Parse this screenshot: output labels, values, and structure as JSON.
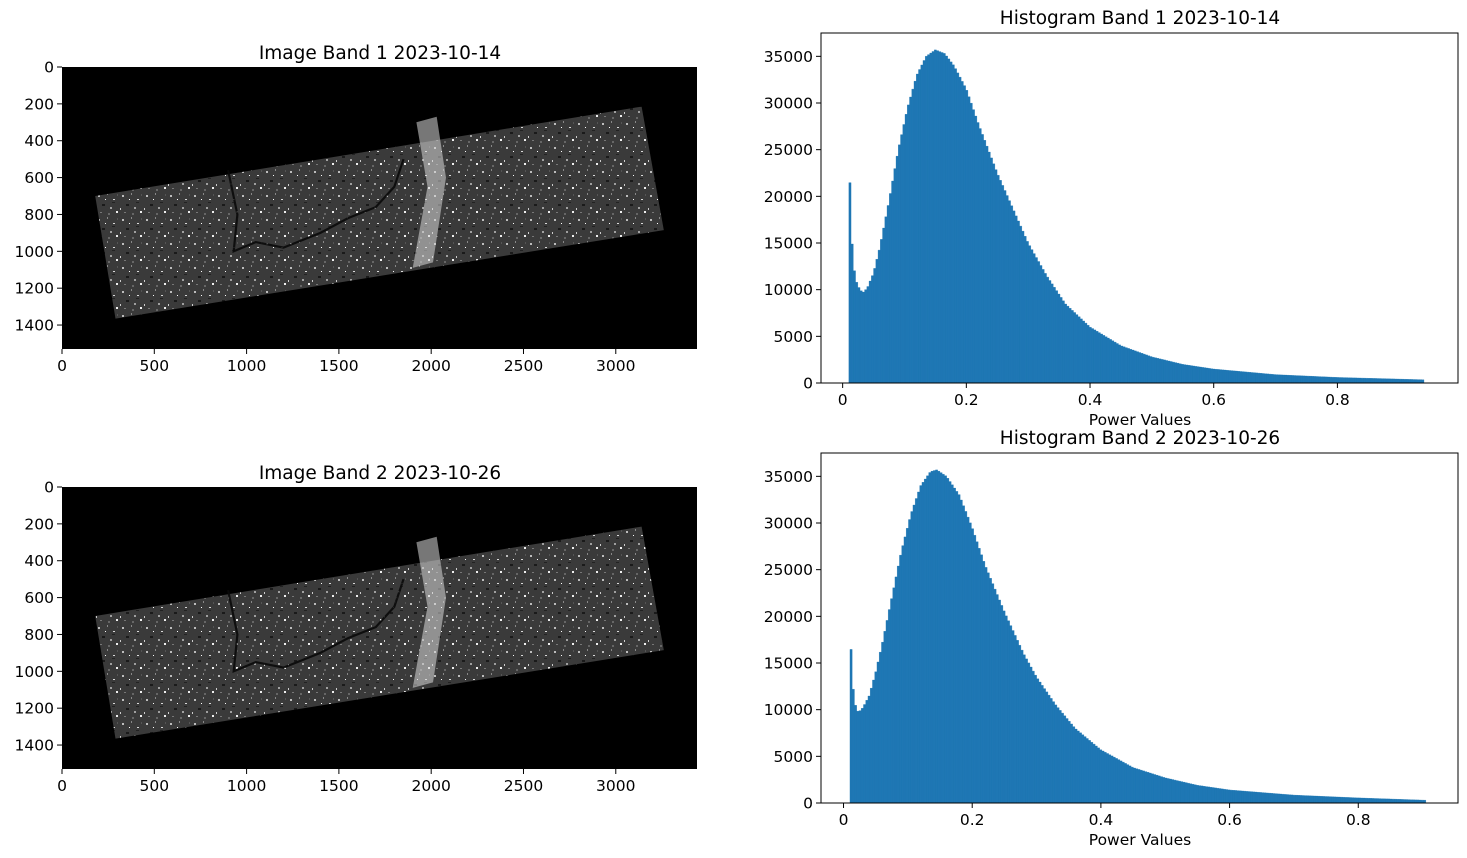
{
  "figure": {
    "bar_color": "#1f77b4",
    "image_cmap": "gray",
    "image_background": "#000000"
  },
  "chart_data": [
    {
      "type": "heatmap",
      "id": "image1",
      "title": "Image Band 1 2023-10-14",
      "xlabel": "",
      "ylabel": "",
      "xlim": [
        0,
        3440
      ],
      "ylim": [
        1530,
        0
      ],
      "xticks": [
        0,
        500,
        1000,
        1500,
        2000,
        2500,
        3000
      ],
      "yticks": [
        0,
        200,
        400,
        600,
        800,
        1000,
        1200,
        1400
      ],
      "swath_corners": [
        [
          180,
          700
        ],
        [
          3140,
          215
        ],
        [
          3260,
          885
        ],
        [
          290,
          1365
        ]
      ]
    },
    {
      "type": "bar",
      "id": "hist1",
      "title": "Histogram Band 1 2023-10-14",
      "xlabel": "Power Values",
      "ylabel": "",
      "xlim": [
        -0.035,
        0.995
      ],
      "ylim": [
        0,
        37500
      ],
      "xticks": [
        0.0,
        0.2,
        0.4,
        0.6,
        0.8
      ],
      "yticks": [
        0,
        5000,
        10000,
        15000,
        20000,
        25000,
        30000,
        35000
      ],
      "x_range": [
        0.01,
        0.94
      ],
      "bins": 256,
      "profile": [
        [
          0.01,
          26500
        ],
        [
          0.0135,
          16800
        ],
        [
          0.018,
          12400
        ],
        [
          0.023,
          10700
        ],
        [
          0.028,
          10000
        ],
        [
          0.033,
          9700
        ],
        [
          0.04,
          10200
        ],
        [
          0.05,
          11800
        ],
        [
          0.06,
          14500
        ],
        [
          0.075,
          19500
        ],
        [
          0.09,
          25000
        ],
        [
          0.105,
          29500
        ],
        [
          0.12,
          33000
        ],
        [
          0.135,
          35000
        ],
        [
          0.15,
          35700
        ],
        [
          0.165,
          35300
        ],
        [
          0.18,
          34000
        ],
        [
          0.2,
          31500
        ],
        [
          0.22,
          27700
        ],
        [
          0.25,
          22500
        ],
        [
          0.28,
          18000
        ],
        [
          0.3,
          15000
        ],
        [
          0.33,
          11500
        ],
        [
          0.36,
          8500
        ],
        [
          0.4,
          6000
        ],
        [
          0.45,
          4000
        ],
        [
          0.5,
          2800
        ],
        [
          0.55,
          2000
        ],
        [
          0.6,
          1500
        ],
        [
          0.7,
          900
        ],
        [
          0.8,
          600
        ],
        [
          0.94,
          350
        ]
      ]
    },
    {
      "type": "heatmap",
      "id": "image2",
      "title": "Image Band 2 2023-10-26",
      "xlabel": "",
      "ylabel": "",
      "xlim": [
        0,
        3440
      ],
      "ylim": [
        1530,
        0
      ],
      "xticks": [
        0,
        500,
        1000,
        1500,
        2000,
        2500,
        3000
      ],
      "yticks": [
        0,
        200,
        400,
        600,
        800,
        1000,
        1200,
        1400
      ],
      "swath_corners": [
        [
          180,
          700
        ],
        [
          3140,
          215
        ],
        [
          3260,
          885
        ],
        [
          290,
          1365
        ]
      ]
    },
    {
      "type": "bar",
      "id": "hist2",
      "title": "Histogram Band 2 2023-10-26",
      "xlabel": "Power Values",
      "ylabel": "",
      "xlim": [
        -0.035,
        0.955
      ],
      "ylim": [
        0,
        37500
      ],
      "xticks": [
        0.0,
        0.2,
        0.4,
        0.6,
        0.8
      ],
      "yticks": [
        0,
        5000,
        10000,
        15000,
        20000,
        25000,
        30000,
        35000
      ],
      "x_range": [
        0.01,
        0.905
      ],
      "bins": 256,
      "profile": [
        [
          0.01,
          19700
        ],
        [
          0.0135,
          13200
        ],
        [
          0.018,
          10600
        ],
        [
          0.023,
          9700
        ],
        [
          0.03,
          10200
        ],
        [
          0.04,
          11500
        ],
        [
          0.05,
          14000
        ],
        [
          0.06,
          17000
        ],
        [
          0.075,
          22000
        ],
        [
          0.09,
          27000
        ],
        [
          0.105,
          31000
        ],
        [
          0.12,
          34000
        ],
        [
          0.135,
          35500
        ],
        [
          0.145,
          35700
        ],
        [
          0.16,
          35000
        ],
        [
          0.18,
          33000
        ],
        [
          0.2,
          29500
        ],
        [
          0.22,
          25500
        ],
        [
          0.25,
          20500
        ],
        [
          0.28,
          16000
        ],
        [
          0.3,
          13500
        ],
        [
          0.33,
          10500
        ],
        [
          0.36,
          8000
        ],
        [
          0.4,
          5700
        ],
        [
          0.45,
          3800
        ],
        [
          0.5,
          2700
        ],
        [
          0.55,
          1900
        ],
        [
          0.6,
          1400
        ],
        [
          0.7,
          850
        ],
        [
          0.8,
          550
        ],
        [
          0.905,
          300
        ]
      ]
    }
  ]
}
